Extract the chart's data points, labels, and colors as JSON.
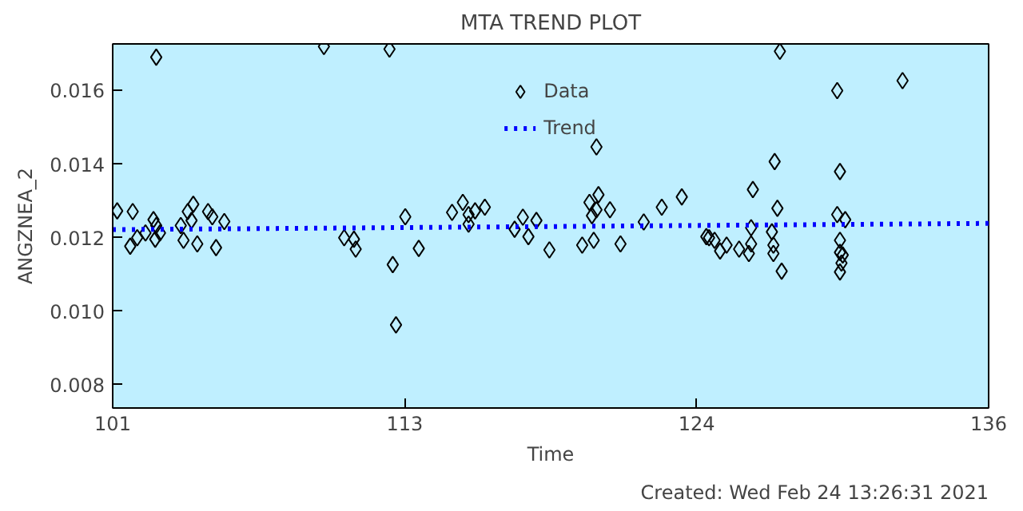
{
  "chart_data": {
    "type": "scatter",
    "title": "MTA TREND PLOT",
    "xlabel": "Time",
    "ylabel": "ANGZNEA_2",
    "annotations": [
      "Created: Wed Feb 24 13:26:31 2021"
    ],
    "xlim": [
      101,
      136
    ],
    "xticks": [
      {
        "value": 101,
        "label": "101"
      },
      {
        "value": 112.667,
        "label": "113"
      },
      {
        "value": 124.333,
        "label": "124"
      },
      {
        "value": 136,
        "label": "136"
      }
    ],
    "ylim": [
      0.00737,
      0.01727
    ],
    "yticks": [
      0.008,
      {
        "value": 0.01,
        "label": "0.010"
      },
      0.012,
      0.014,
      0.016
    ],
    "grid": false,
    "legend": "top",
    "marker": "diamond",
    "series": [
      {
        "name": "Data",
        "color": "#000000",
        "x": [
          101.18,
          101.8,
          101.7,
          101.98,
          102.31,
          102.63,
          102.74,
          102.7,
          102.89,
          102.74,
          103.72,
          103.83,
          104.0,
          104.22,
          104.15,
          104.38,
          104.81,
          104.98,
          105.13,
          105.46,
          109.44,
          110.25,
          110.64,
          110.71,
          112.06,
          112.19,
          112.32,
          112.69,
          113.23,
          114.56,
          114.99,
          115.22,
          115.48,
          115.87,
          115.22,
          117.06,
          117.39,
          117.93,
          117.61,
          118.45,
          120.33,
          120.05,
          120.41,
          120.33,
          120.15,
          120.87,
          119.76,
          120.22,
          121.29,
          122.22,
          122.94,
          123.74,
          124.72,
          124.83,
          125.05,
          125.27,
          125.53,
          126.03,
          126.42,
          126.51,
          126.51,
          126.58,
          127.34,
          127.4,
          127.4,
          127.56,
          127.45,
          127.66,
          127.73,
          129.95,
          130.06,
          129.95,
          130.27,
          130.06,
          130.06,
          130.17,
          130.12,
          130.06,
          132.56
        ],
        "values": [
          0.01273,
          0.01271,
          0.01177,
          0.012,
          0.01213,
          0.01249,
          0.01233,
          0.01196,
          0.01213,
          0.01691,
          0.01233,
          0.01193,
          0.01271,
          0.01291,
          0.01247,
          0.01183,
          0.01271,
          0.01257,
          0.01173,
          0.01244,
          0.0172,
          0.012,
          0.01196,
          0.01169,
          0.01713,
          0.01127,
          0.00963,
          0.01257,
          0.01171,
          0.01269,
          0.01296,
          0.01263,
          0.01273,
          0.01283,
          0.01237,
          0.01223,
          0.01256,
          0.01247,
          0.01203,
          0.01167,
          0.01447,
          0.01296,
          0.01317,
          0.01276,
          0.0126,
          0.01276,
          0.0118,
          0.01193,
          0.01183,
          0.01243,
          0.01283,
          0.01311,
          0.01203,
          0.012,
          0.01193,
          0.01164,
          0.0118,
          0.01169,
          0.01157,
          0.01183,
          0.01227,
          0.01331,
          0.01216,
          0.0118,
          0.01157,
          0.0128,
          0.01407,
          0.01707,
          0.01109,
          0.016,
          0.0138,
          0.01263,
          0.01249,
          0.01193,
          0.0116,
          0.01153,
          0.01131,
          0.01107,
          0.01627
        ]
      },
      {
        "name": "Trend",
        "type": "line",
        "color": "#0000ff",
        "line_style": "dotted",
        "marker": "none",
        "x": [
          101,
          136
        ],
        "values": [
          0.01222,
          0.01239
        ]
      }
    ]
  }
}
